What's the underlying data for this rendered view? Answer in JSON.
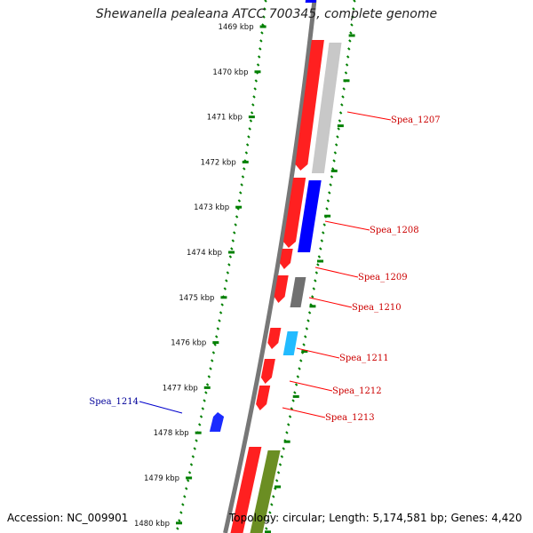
{
  "title": "Shewanella pealeana ATCC 700345, complete genome",
  "footer": {
    "accession": "Accession: NC_009901",
    "summary": "Topology: circular; Length: 5,174,581 bp; Genes: 4,420"
  },
  "colors": {
    "backbone": "#777777",
    "forward_gene": "#ff0000",
    "reverse_gene": "#0000ff",
    "tick": "#008000",
    "label_forward": "#cc0000",
    "label_reverse": "#000099"
  },
  "ruler": {
    "unit": "kbp",
    "ticks": [
      "1469 kbp",
      "1470 kbp",
      "1471 kbp",
      "1472 kbp",
      "1473 kbp",
      "1474 kbp",
      "1475 kbp",
      "1476 kbp",
      "1477 kbp",
      "1478 kbp",
      "1479 kbp",
      "1480 kbp"
    ]
  },
  "genes": [
    {
      "name": "Spea_1207",
      "color": "red"
    },
    {
      "name": "Spea_1208",
      "color": "red"
    },
    {
      "name": "Spea_1209",
      "color": "red"
    },
    {
      "name": "Spea_1210",
      "color": "red"
    },
    {
      "name": "Spea_1211",
      "color": "red"
    },
    {
      "name": "Spea_1212",
      "color": "red"
    },
    {
      "name": "Spea_1213",
      "color": "red"
    },
    {
      "name": "Spea_1214",
      "color": "blue"
    }
  ]
}
